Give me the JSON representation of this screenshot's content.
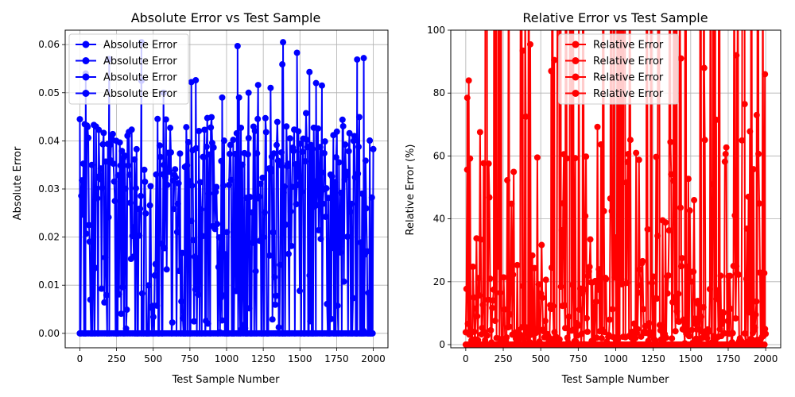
{
  "figure": {
    "background": "#ffffff"
  },
  "chart_data": [
    {
      "type": "line",
      "title": "Absolute Error vs Test Sample",
      "xlabel": "Test Sample Number",
      "ylabel": "Absolute Error",
      "xlim": [
        -100,
        2100
      ],
      "ylim": [
        -0.003,
        0.063
      ],
      "xticks": [
        0,
        250,
        500,
        750,
        1000,
        1250,
        1500,
        1750,
        2000
      ],
      "yticks": [
        0.0,
        0.01,
        0.02,
        0.03,
        0.04,
        0.05,
        0.06
      ],
      "ytick_labels": [
        "0.00",
        "0.01",
        "0.02",
        "0.03",
        "0.04",
        "0.05",
        "0.06"
      ],
      "grid": true,
      "legend": {
        "position": "top-left",
        "entries": [
          "Absolute Error",
          "Absolute Error",
          "Absolute Error",
          "Absolute Error"
        ]
      },
      "series_color": "#0000ff",
      "marker": "circle",
      "n_samples": 2001,
      "value_range": [
        0.0,
        0.0605
      ],
      "peaks": [
        {
          "x": 0,
          "y": 0.0445
        },
        {
          "x": 40,
          "y": 0.054
        },
        {
          "x": 200,
          "y": 0.057
        },
        {
          "x": 420,
          "y": 0.0605
        },
        {
          "x": 420,
          "y": 0.0525
        },
        {
          "x": 570,
          "y": 0.05
        },
        {
          "x": 760,
          "y": 0.0522
        },
        {
          "x": 790,
          "y": 0.0526
        },
        {
          "x": 970,
          "y": 0.049
        },
        {
          "x": 1075,
          "y": 0.0597
        },
        {
          "x": 1085,
          "y": 0.049
        },
        {
          "x": 1150,
          "y": 0.05
        },
        {
          "x": 1215,
          "y": 0.0516
        },
        {
          "x": 1300,
          "y": 0.051
        },
        {
          "x": 1380,
          "y": 0.0559
        },
        {
          "x": 1385,
          "y": 0.0605
        },
        {
          "x": 1480,
          "y": 0.0583
        },
        {
          "x": 1565,
          "y": 0.0543
        },
        {
          "x": 1610,
          "y": 0.052
        },
        {
          "x": 1650,
          "y": 0.0515
        },
        {
          "x": 1890,
          "y": 0.0569
        },
        {
          "x": 1935,
          "y": 0.0572
        }
      ]
    },
    {
      "type": "line",
      "title": "Relative Error vs Test Sample",
      "xlabel": "Test Sample Number",
      "ylabel": "Relative Error (%)",
      "xlim": [
        -100,
        2100
      ],
      "ylim": [
        -1,
        100
      ],
      "xticks": [
        0,
        250,
        500,
        750,
        1000,
        1250,
        1500,
        1750,
        2000
      ],
      "yticks": [
        0,
        20,
        40,
        60,
        80,
        100
      ],
      "ytick_labels": [
        "0",
        "20",
        "40",
        "60",
        "80",
        "100"
      ],
      "grid": true,
      "legend": {
        "position": "top-center",
        "entries": [
          "Relative Error",
          "Relative Error",
          "Relative Error",
          "Relative Error"
        ]
      },
      "series_color": "#ff0000",
      "marker": "circle",
      "n_samples": 2001,
      "clipped_above": 100,
      "peaks": [
        {
          "x": 10,
          "y": 78.5
        },
        {
          "x": 20,
          "y": 84
        },
        {
          "x": 380,
          "y": 93.5
        },
        {
          "x": 400,
          "y": 72.5
        },
        {
          "x": 430,
          "y": 95.5
        },
        {
          "x": 570,
          "y": 87
        },
        {
          "x": 590,
          "y": 90.5
        },
        {
          "x": 1435,
          "y": 91
        },
        {
          "x": 1590,
          "y": 88
        },
        {
          "x": 1670,
          "y": 71.5
        },
        {
          "x": 1805,
          "y": 92
        },
        {
          "x": 1860,
          "y": 76.5
        },
        {
          "x": 1940,
          "y": 73
        },
        {
          "x": 1995,
          "y": 86
        }
      ]
    }
  ]
}
